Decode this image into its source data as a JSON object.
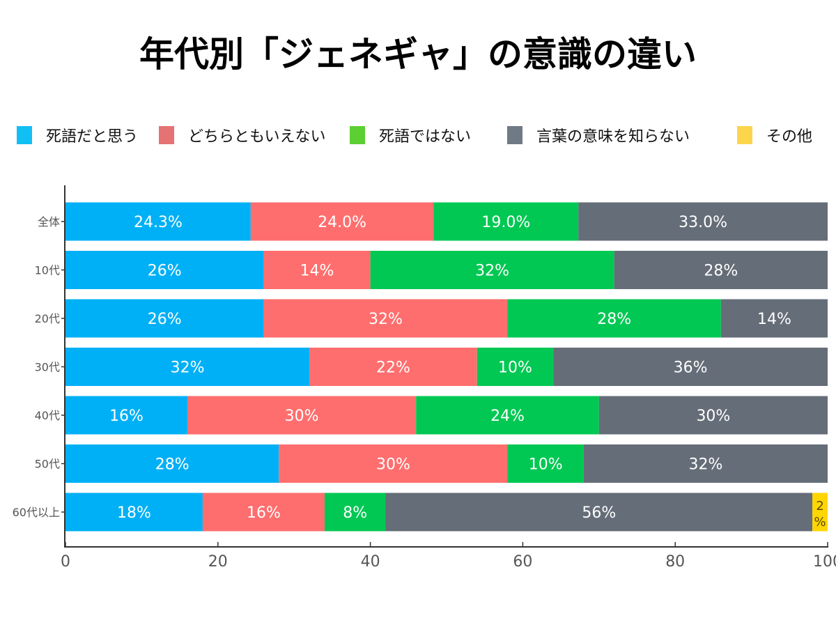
{
  "chart_data": {
    "type": "bar",
    "orientation": "horizontal",
    "stacked": true,
    "title": "年代別「ジェネギャ」の意識の違い",
    "xlabel": "",
    "ylabel": "",
    "xlim": [
      0,
      100
    ],
    "xticks": [
      0,
      20,
      40,
      60,
      80,
      100
    ],
    "grid": false,
    "legend_position": "top",
    "categories": [
      "全体",
      "10代",
      "20代",
      "30代",
      "40代",
      "50代",
      "60代以上"
    ],
    "series": [
      {
        "name": "死語だと思う",
        "color": "#00b0f6",
        "legend_color": "#12bff5",
        "values": [
          24.3,
          26,
          26,
          32,
          16,
          28,
          18
        ],
        "labels": [
          "24.3%",
          "26%",
          "26%",
          "32%",
          "16%",
          "28%",
          "18%"
        ]
      },
      {
        "name": "どちらともいえない",
        "color": "#ff6e6e",
        "legend_color": "#e57373",
        "values": [
          24.0,
          14,
          32,
          22,
          30,
          30,
          16
        ],
        "labels": [
          "24.0%",
          "14%",
          "32%",
          "22%",
          "30%",
          "30%",
          "16%"
        ]
      },
      {
        "name": "死語ではない",
        "color": "#00c853",
        "legend_color": "#5ccf33",
        "values": [
          19.0,
          32,
          28,
          10,
          24,
          10,
          8
        ],
        "labels": [
          "19.0%",
          "32%",
          "28%",
          "10%",
          "24%",
          "10%",
          "8%"
        ]
      },
      {
        "name": "言葉の意味を知らない",
        "color": "#656d78",
        "legend_color": "#6f7a85",
        "values": [
          33.0,
          28,
          14,
          36,
          30,
          32,
          56
        ],
        "labels": [
          "33.0%",
          "28%",
          "14%",
          "36%",
          "30%",
          "32%",
          "56%"
        ]
      },
      {
        "name": "その他",
        "color": "#ffd600",
        "legend_color": "#fdd54c",
        "values": [
          0,
          0,
          0,
          0,
          0,
          0,
          2
        ],
        "labels": [
          "",
          "",
          "",
          "",
          "",
          "",
          "2%"
        ]
      }
    ]
  }
}
